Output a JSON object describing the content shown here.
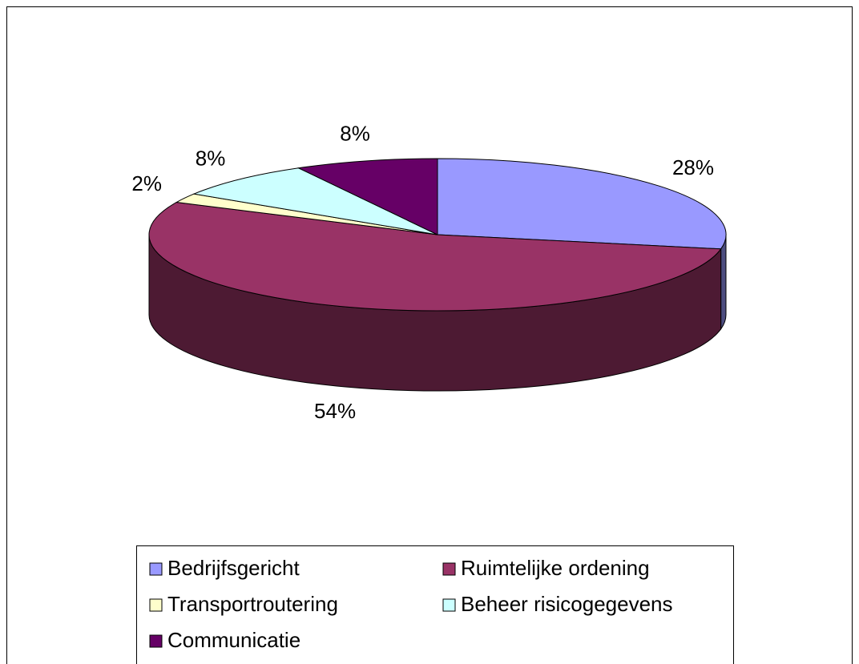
{
  "chart_data": {
    "type": "pie",
    "categories": [
      "Bedrijfsgericht",
      "Ruimtelijke ordening",
      "Transportroutering",
      "Beheer risicogegevens",
      "Communicatie"
    ],
    "values": [
      28,
      54,
      2,
      8,
      8
    ],
    "value_labels": [
      "28%",
      "54%",
      "2%",
      "8%",
      "8%"
    ],
    "colors": [
      "#9999ff",
      "#993366",
      "#ffffcc",
      "#ccffff",
      "#660066"
    ],
    "legend": "bottom"
  }
}
